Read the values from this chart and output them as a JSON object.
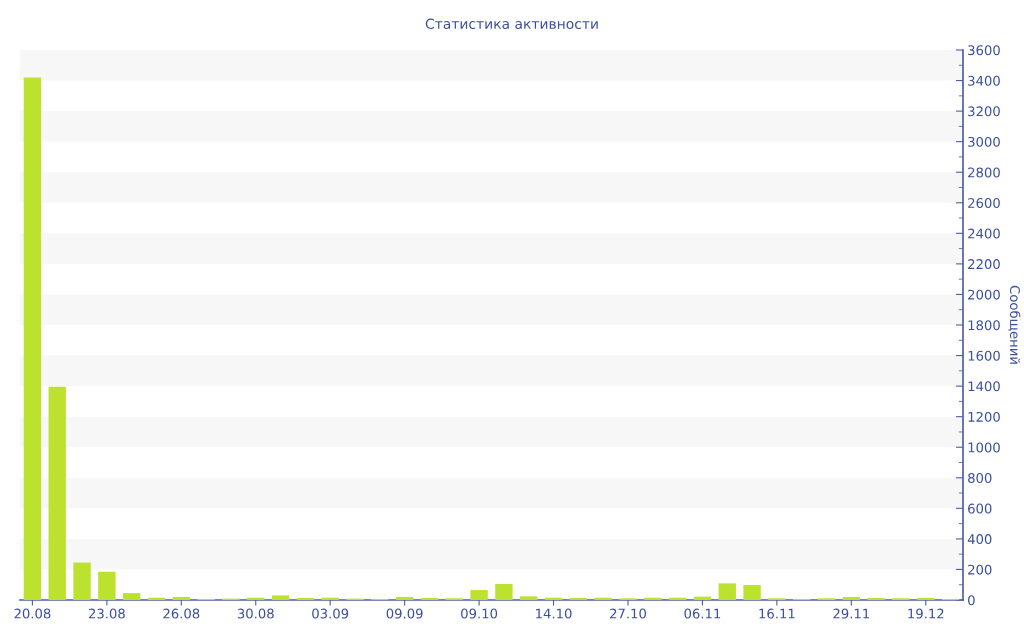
{
  "chart_data": {
    "type": "bar",
    "title": "Статистика активности",
    "ylabel": "Сообщений",
    "categories": [
      "20.08",
      null,
      null,
      "23.08",
      null,
      null,
      "26.08",
      null,
      null,
      "30.08",
      null,
      null,
      "03.09",
      null,
      null,
      "09.09",
      null,
      null,
      "09.10",
      null,
      null,
      "14.10",
      null,
      null,
      "27.10",
      null,
      null,
      "06.11",
      null,
      null,
      "16.11",
      null,
      null,
      "29.11",
      null,
      null,
      "19.12",
      null
    ],
    "values": [
      3420,
      1395,
      245,
      185,
      45,
      15,
      20,
      7,
      9,
      15,
      30,
      13,
      15,
      9,
      7,
      20,
      13,
      11,
      65,
      105,
      24,
      15,
      13,
      15,
      11,
      15,
      15,
      22,
      109,
      98,
      11,
      7,
      11,
      20,
      13,
      11,
      13,
      7
    ],
    "color": "#bce22f",
    "ylim": [
      0,
      3600
    ],
    "yticks": [
      0,
      200,
      400,
      600,
      800,
      1000,
      1200,
      1400,
      1600,
      1800,
      2000,
      2200,
      2400,
      2600,
      2800,
      3000,
      3200,
      3400,
      3600
    ],
    "bands": [
      {
        "axis": "y",
        "from": 200,
        "to": 400,
        "color": "#f7f7f7"
      },
      {
        "axis": "y",
        "from": 600,
        "to": 800,
        "color": "#f7f7f7"
      },
      {
        "axis": "y",
        "from": 1000,
        "to": 1200,
        "color": "#f7f7f7"
      },
      {
        "axis": "y",
        "from": 1400,
        "to": 1600,
        "color": "#f7f7f7"
      },
      {
        "axis": "y",
        "from": 1800,
        "to": 2000,
        "color": "#f7f7f7"
      },
      {
        "axis": "y",
        "from": 2200,
        "to": 2400,
        "color": "#f7f7f7"
      },
      {
        "axis": "y",
        "from": 2600,
        "to": 2800,
        "color": "#f7f7f7"
      },
      {
        "axis": "y",
        "from": 3000,
        "to": 3200,
        "color": "#f7f7f7"
      },
      {
        "axis": "y",
        "from": 3400,
        "to": 3600,
        "color": "#f7f7f7"
      }
    ]
  }
}
